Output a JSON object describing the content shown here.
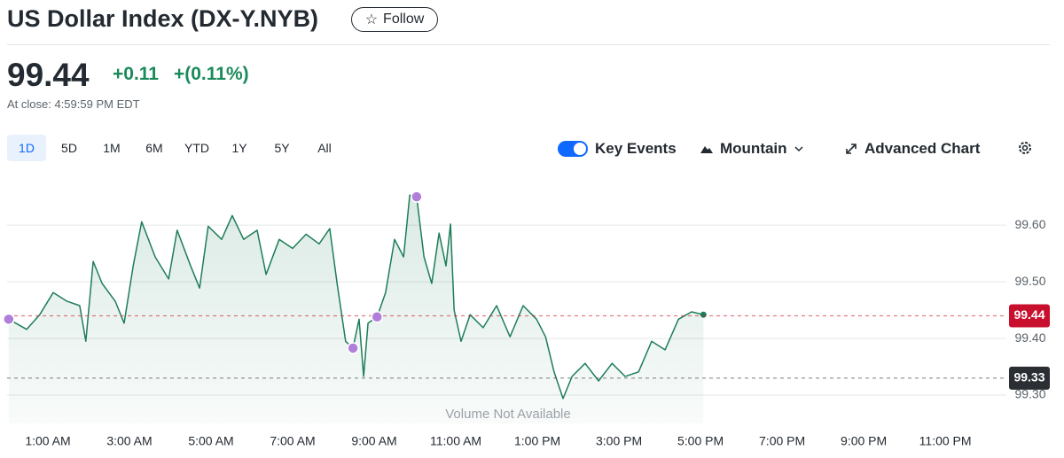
{
  "header": {
    "title": "US Dollar Index (DX-Y.NYB)",
    "follow": "Follow"
  },
  "quote": {
    "price": "99.44",
    "change": "+0.11",
    "change_percent": "+(0.11%)",
    "close_note": "At close: 4:59:59 PM EDT"
  },
  "ranges": [
    "1D",
    "5D",
    "1M",
    "6M",
    "YTD",
    "1Y",
    "5Y",
    "All"
  ],
  "toolbar": {
    "key_events": "Key Events",
    "chart_style": "Mountain",
    "advanced": "Advanced Chart"
  },
  "chart_data": {
    "type": "area",
    "color": "#1e7d58",
    "x": [
      0.04,
      0.48,
      0.8,
      1.13,
      1.46,
      1.78,
      1.93,
      2.11,
      2.33,
      2.65,
      2.87,
      3.09,
      3.3,
      3.63,
      3.96,
      4.17,
      4.5,
      4.72,
      4.93,
      5.26,
      5.52,
      5.8,
      6.13,
      6.35,
      6.67,
      7.0,
      7.33,
      7.65,
      7.91,
      8.09,
      8.3,
      8.48,
      8.63,
      8.74,
      8.85,
      9.07,
      9.28,
      9.5,
      9.72,
      9.87,
      10.04,
      10.22,
      10.41,
      10.59,
      10.76,
      10.87,
      10.96,
      11.13,
      11.35,
      11.67,
      12.0,
      12.33,
      12.65,
      12.98,
      13.2,
      13.41,
      13.63,
      13.85,
      14.17,
      14.5,
      14.83,
      15.15,
      15.48,
      15.8,
      16.13,
      16.46,
      16.78,
      17.07
    ],
    "values": [
      99.434,
      99.416,
      99.442,
      99.481,
      99.466,
      99.458,
      99.395,
      99.536,
      99.497,
      99.466,
      99.427,
      99.528,
      99.606,
      99.544,
      99.505,
      99.591,
      99.528,
      99.489,
      99.598,
      99.575,
      99.617,
      99.575,
      99.591,
      99.513,
      99.575,
      99.559,
      99.584,
      99.567,
      99.594,
      99.497,
      99.395,
      99.383,
      99.434,
      99.333,
      99.427,
      99.438,
      99.481,
      99.575,
      99.544,
      99.653,
      99.65,
      99.544,
      99.497,
      99.586,
      99.528,
      99.602,
      99.45,
      99.395,
      99.442,
      99.419,
      99.458,
      99.403,
      99.458,
      99.434,
      99.403,
      99.341,
      99.294,
      99.333,
      99.356,
      99.325,
      99.356,
      99.333,
      99.341,
      99.395,
      99.38,
      99.434,
      99.447,
      99.442
    ],
    "key_events": {
      "color": "#b07fd9",
      "x": [
        0.04,
        8.48,
        9.07,
        10.04
      ],
      "values": [
        99.434,
        99.383,
        99.438,
        99.65
      ]
    },
    "reference_lines": [
      {
        "value": 99.44,
        "color": "#c8102e"
      },
      {
        "value": 99.33,
        "color": "#2b2e33"
      }
    ],
    "xlim": [
      0,
      24.28
    ],
    "ylim": [
      99.25,
      99.68
    ],
    "xticks": [
      {
        "value": 1,
        "label": "1:00 AM"
      },
      {
        "value": 3,
        "label": "3:00 AM"
      },
      {
        "value": 5,
        "label": "5:00 AM"
      },
      {
        "value": 7,
        "label": "7:00 AM"
      },
      {
        "value": 9,
        "label": "9:00 AM"
      },
      {
        "value": 11,
        "label": "11:00 AM"
      },
      {
        "value": 13,
        "label": "1:00 PM"
      },
      {
        "value": 15,
        "label": "3:00 PM"
      },
      {
        "value": 17,
        "label": "5:00 PM"
      },
      {
        "value": 19,
        "label": "7:00 PM"
      },
      {
        "value": 21,
        "label": "9:00 PM"
      },
      {
        "value": 23,
        "label": "11:00 PM"
      }
    ],
    "yticks": [
      {
        "value": 99.3,
        "label": "99.30"
      },
      {
        "value": 99.4,
        "label": "99.40"
      },
      {
        "value": 99.5,
        "label": "99.50"
      },
      {
        "value": 99.6,
        "label": "99.60"
      }
    ],
    "grid": true,
    "annotation": "Volume Not Available"
  }
}
